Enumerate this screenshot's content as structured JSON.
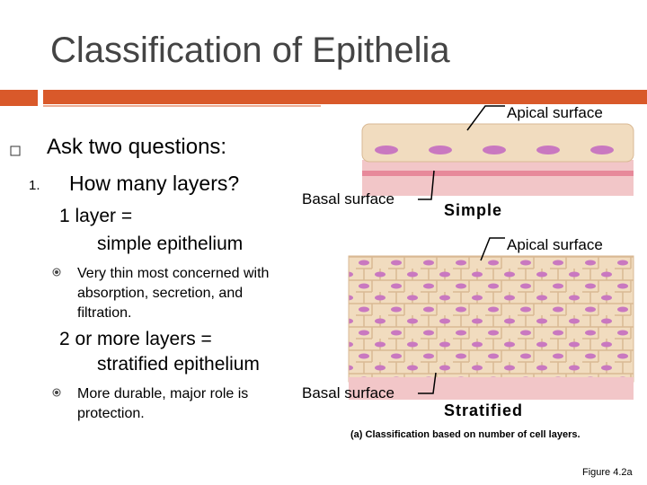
{
  "title": "Classification of Epithelia",
  "content": {
    "main_bullet": "Ask two questions:",
    "question_number": "1.",
    "question": "How many layers?",
    "one_layer": [
      "1 layer =",
      "simple epithelium"
    ],
    "one_layer_note": "Very thin most concerned with absorption, secretion, and filtration.",
    "more_layers": [
      "2 or more layers =",
      "stratified epithelium"
    ],
    "more_layers_note": "More durable, major role is protection."
  },
  "figure": {
    "simple": {
      "apical": "Apical surface",
      "basal": "Basal surface",
      "name": "Simple"
    },
    "stratified": {
      "apical": "Apical surface",
      "basal": "Basal surface",
      "name": "Stratified"
    },
    "caption": "(a) Classification based on number of cell layers.",
    "figure_number": "Figure 4.2a"
  }
}
